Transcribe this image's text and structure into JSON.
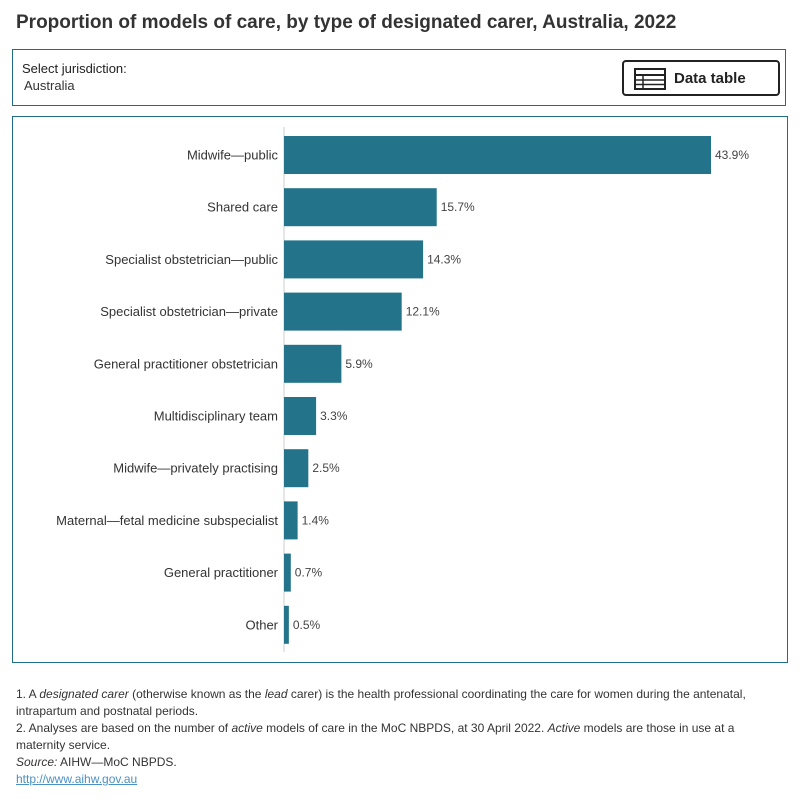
{
  "title": "Proportion of models of care, by type of designated carer, Australia, 2022",
  "filter": {
    "label": "Select jurisdiction:",
    "value": "Australia"
  },
  "data_table_button": {
    "label": "Data table",
    "icon": "table-icon"
  },
  "colors": {
    "bar": "#23738b",
    "border": "#1f6e83",
    "link": "#4a90c2"
  },
  "chart_data": {
    "type": "bar",
    "orientation": "horizontal",
    "categories": [
      "Midwife—public",
      "Shared care",
      "Specialist obstetrician—public",
      "Specialist obstetrician—private",
      "General practitioner obstetrician",
      "Multidisciplinary team",
      "Midwife—privately practising",
      "Maternal—fetal medicine subspecialist",
      "General practitioner",
      "Other"
    ],
    "values": [
      43.9,
      15.7,
      14.3,
      12.1,
      5.9,
      3.3,
      2.5,
      1.4,
      0.7,
      0.5
    ],
    "value_labels": [
      "43.9%",
      "15.7%",
      "14.3%",
      "12.1%",
      "5.9%",
      "3.3%",
      "2.5%",
      "1.4%",
      "0.7%",
      "0.5%"
    ],
    "xlim": [
      0,
      50
    ],
    "grid": false,
    "legend": "none"
  },
  "footnotes": {
    "note1_prefix": "1. A ",
    "note1_term1": "designated carer",
    "note1_mid": " (otherwise known as the ",
    "note1_term2": "lead",
    "note1_suffix": " carer) is the health professional coordinating the care for women during the antenatal, intrapartum and postnatal periods.",
    "note2_prefix": "2. Analyses are based on the number of ",
    "note2_term1": "active",
    "note2_mid": " models of care in the MoC NBPDS, at 30 April 2022. ",
    "note2_term2": "Active",
    "note2_suffix": " models are those in use at a maternity service.",
    "source_label": "Source:",
    "source_text": " AIHW—MoC NBPDS.",
    "link": "http://www.aihw.gov.au"
  }
}
